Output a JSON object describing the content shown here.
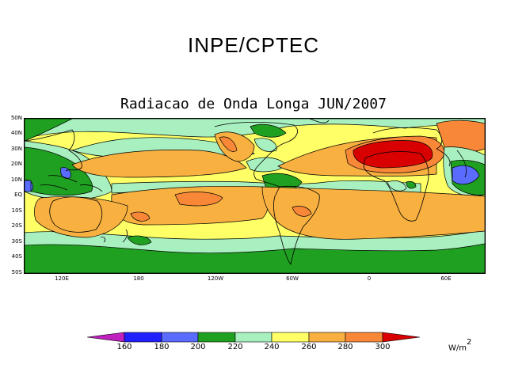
{
  "header": {
    "title": "INPE/CPTEC"
  },
  "map": {
    "title": "Radiacao de Onda Longa JUN/2007",
    "lat_labels": [
      "50N",
      "40N",
      "30N",
      "20N",
      "10N",
      "EQ",
      "10S",
      "20S",
      "30S",
      "40S",
      "50S"
    ],
    "lon_labels": [
      "120E",
      "180",
      "120W",
      "60W",
      "0",
      "60E"
    ],
    "palette": {
      "lt160": "#c020c0",
      "c160": "#2020ff",
      "c180": "#5a6bff",
      "c200": "#20a020",
      "c220": "#a8f0c0",
      "c240": "#ffff66",
      "c260": "#f8b040",
      "c280": "#f88838",
      "c300": "#d80000"
    }
  },
  "colorbar": {
    "labels": [
      "160",
      "180",
      "200",
      "220",
      "240",
      "260",
      "280",
      "300"
    ],
    "units_base": "W/m",
    "units_exp": "2"
  }
}
